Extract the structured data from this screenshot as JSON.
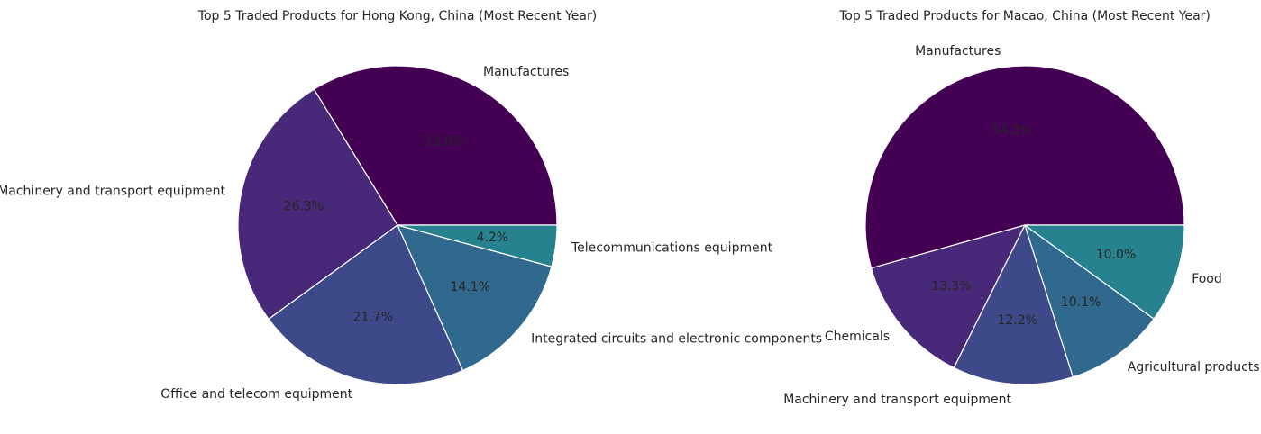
{
  "chart_data": [
    {
      "type": "pie",
      "title": "Top 5 Traded Products for Hong Kong, China (Most Recent Year)",
      "categories": [
        "Manufactures",
        "Machinery and transport equipment",
        "Office and telecom equipment",
        "Integrated circuits and electronic components",
        "Telecommunications equipment"
      ],
      "values": [
        33.8,
        26.3,
        21.7,
        14.1,
        4.2
      ],
      "value_labels": [
        "33.8%",
        "26.3%",
        "21.7%",
        "14.1%",
        "4.2%"
      ],
      "colors": [
        "#440154",
        "#482878",
        "#3e4989",
        "#31688e",
        "#26828e"
      ]
    },
    {
      "type": "pie",
      "title": "Top 5 Traded Products for Macao, China (Most Recent Year)",
      "categories": [
        "Manufactures",
        "Chemicals",
        "Machinery and transport equipment",
        "Agricultural products",
        "Food"
      ],
      "values": [
        54.3,
        13.3,
        12.2,
        10.1,
        10.0
      ],
      "value_labels": [
        "54.3%",
        "13.3%",
        "12.2%",
        "10.1%",
        "10.0%"
      ],
      "colors": [
        "#440154",
        "#482878",
        "#3e4989",
        "#31688e",
        "#26828e"
      ]
    }
  ]
}
